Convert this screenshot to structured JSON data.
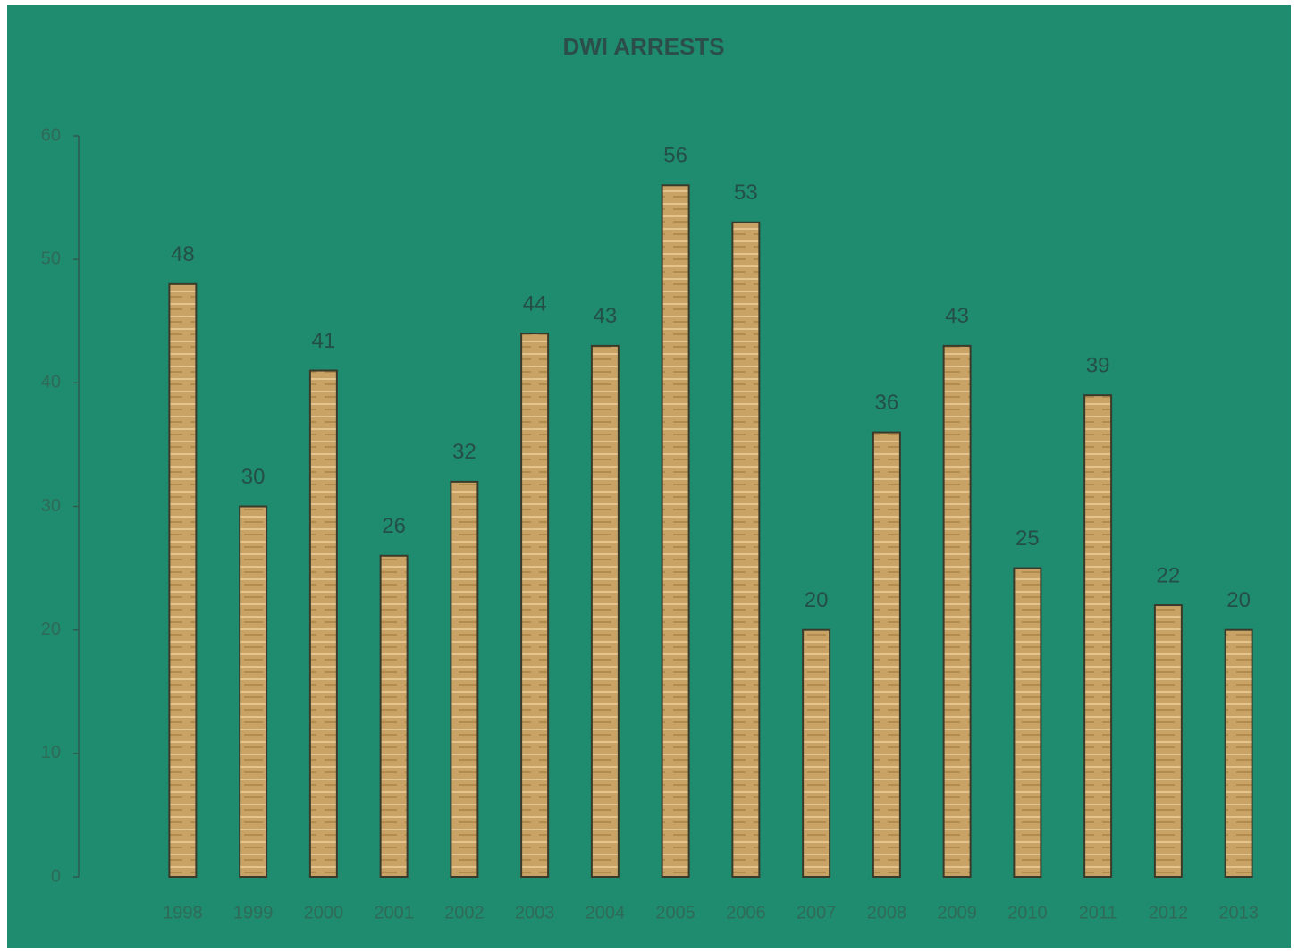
{
  "chart_data": {
    "type": "bar",
    "title": "DWI ARRESTS",
    "categories": [
      "1998",
      "1999",
      "2000",
      "2001",
      "2002",
      "2003",
      "2004",
      "2005",
      "2006",
      "2007",
      "2008",
      "2009",
      "2010",
      "2011",
      "2012",
      "2013"
    ],
    "values": [
      48,
      30,
      41,
      26,
      32,
      44,
      43,
      56,
      53,
      20,
      36,
      43,
      25,
      39,
      22,
      20
    ],
    "color": "#c9a266",
    "ylim": [
      0,
      60
    ],
    "yticks": [
      0,
      10,
      20,
      30,
      40,
      50,
      60
    ],
    "grid": false
  }
}
